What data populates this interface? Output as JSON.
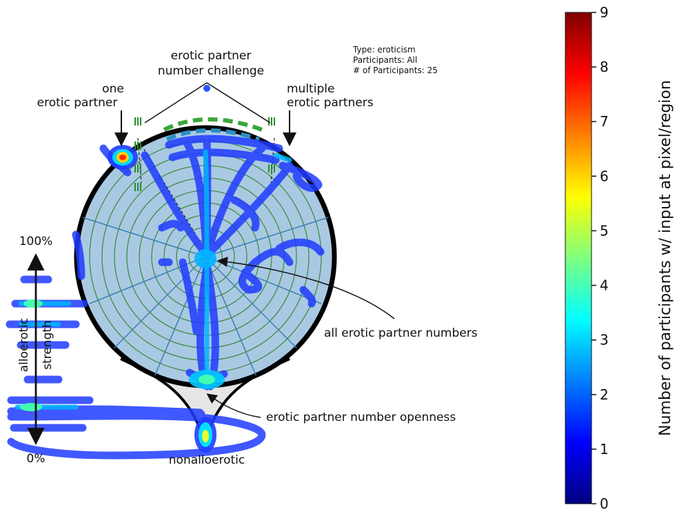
{
  "chart_data": {
    "type": "heatmap",
    "info": {
      "type_line": "Type: eroticism",
      "participants_line": "Participants: All",
      "count_line": "# of Participants: 25"
    },
    "annotations": {
      "challenge_line1": "erotic partner",
      "challenge_line2": "number challenge",
      "one_line1": "one",
      "one_line2": "erotic partner",
      "multiple_line1": "multiple",
      "multiple_line2": "erotic partners",
      "all_numbers": "all erotic partner numbers",
      "openness": "erotic partner number openness",
      "nonallo": "nonalloerotic"
    },
    "axis": {
      "top": "100%",
      "bottom": "0%",
      "label_line1": "alloerotic",
      "label_line2": "strength"
    },
    "colorbar": {
      "label": "Number of participants w/ input at pixel/region",
      "min": 0,
      "max": 9,
      "ticks": [
        "0",
        "1",
        "2",
        "3",
        "4",
        "5",
        "6",
        "7",
        "8",
        "9"
      ],
      "colormap": "jet",
      "stops": [
        "#00007f",
        "#0000ff",
        "#007fff",
        "#00ffff",
        "#7fff7f",
        "#ffff00",
        "#ff7f00",
        "#ff0000",
        "#7f0000"
      ]
    },
    "hotspots": [
      {
        "region": "one erotic partner",
        "value": 7
      },
      {
        "region": "nonalloerotic",
        "value": 5
      },
      {
        "region": "erotic partner number openness",
        "value": 4
      },
      {
        "region": "all erotic partner numbers",
        "value": 3
      },
      {
        "region": "multiple erotic partners",
        "value": 3
      }
    ]
  }
}
